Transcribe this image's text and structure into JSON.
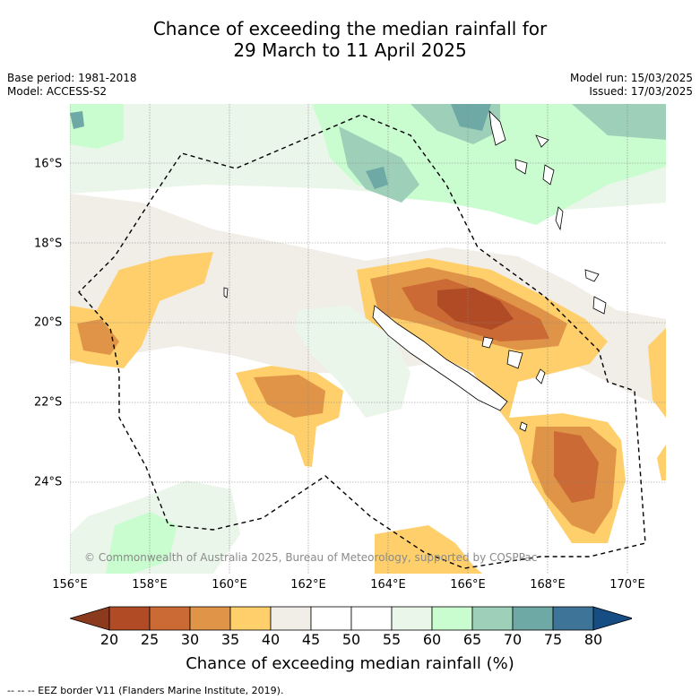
{
  "title_line1": "Chance of exceeding the median rainfall for",
  "title_line2": "29 March to 11 April 2025",
  "meta_left": [
    "Base period: 1981-2018",
    "Model: ACCESS-S2"
  ],
  "meta_right": [
    "Model run: 15/03/2025",
    "Issued: 17/03/2025"
  ],
  "copyright": "© Commonwealth of Australia 2025, Bureau of Meteorology, supported by COSPPac",
  "lon_labels": [
    "156°E",
    "158°E",
    "160°E",
    "162°E",
    "164°E",
    "166°E",
    "168°E",
    "170°E"
  ],
  "lat_labels": [
    "16°S",
    "18°S",
    "20°S",
    "22°S",
    "24°S"
  ],
  "colorbar": {
    "label": "Chance of exceeding median rainfall (%)",
    "ticks": [
      "20",
      "25",
      "30",
      "35",
      "40",
      "45",
      "50",
      "55",
      "60",
      "65",
      "70",
      "75",
      "80"
    ],
    "colors": [
      "#8b3a1e",
      "#b04b25",
      "#cc6a35",
      "#e09448",
      "#fecf6a",
      "#f1ede7",
      "#ffffff",
      "#ffffff",
      "#ebf6ea",
      "#c9fccf",
      "#9ed0b9",
      "#6ea9a6",
      "#3d7497",
      "#164d82"
    ]
  },
  "footer": "--  --  -- EEZ border V11 (Flanders Marine Institute, 2019)."
}
